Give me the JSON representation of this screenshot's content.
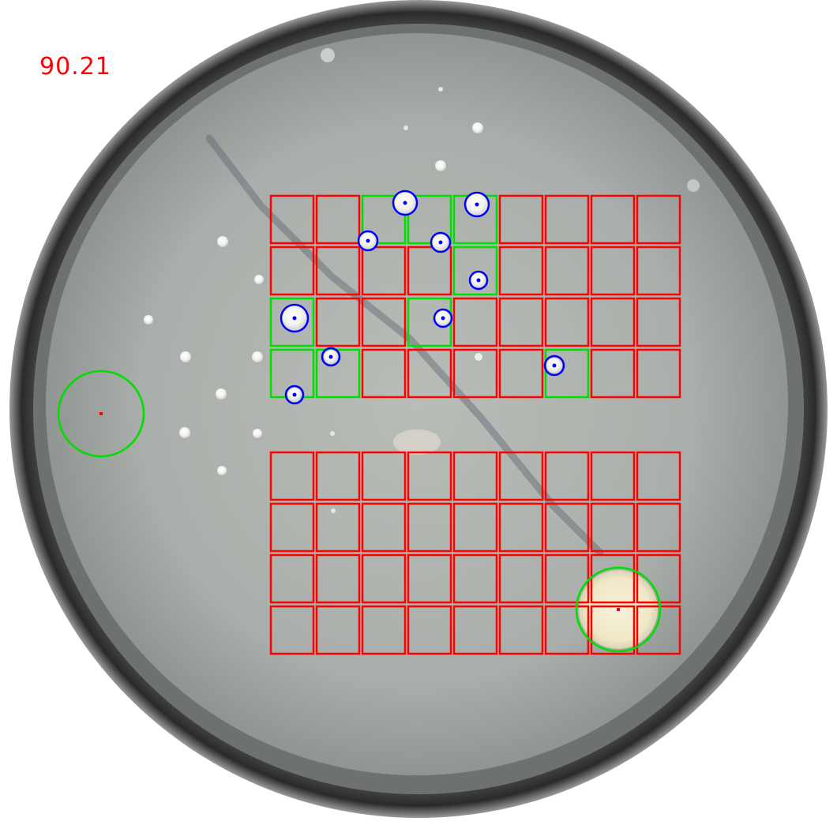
{
  "score": "90.21",
  "colors": {
    "empty_cell": "#ff0000",
    "colony_cell": "#00dd00",
    "colony_marker": "#0000ff",
    "reference_circle": "#00dd00",
    "reference_center": "#ff0000"
  },
  "grids": [
    {
      "name": "upper-grid",
      "rows": 4,
      "cols": 9,
      "cells": [
        [
          "empty",
          "empty",
          "colony",
          "colony",
          "colony",
          "empty",
          "empty",
          "empty",
          "empty"
        ],
        [
          "empty",
          "empty",
          "empty",
          "empty",
          "colony",
          "empty",
          "empty",
          "empty",
          "empty"
        ],
        [
          "colony",
          "empty",
          "empty",
          "colony",
          "empty",
          "empty",
          "empty",
          "empty",
          "empty"
        ],
        [
          "colony",
          "colony",
          "empty",
          "empty",
          "empty",
          "empty",
          "colony",
          "empty",
          "empty"
        ]
      ]
    },
    {
      "name": "lower-grid",
      "rows": 4,
      "cols": 9,
      "cells": [
        [
          "empty",
          "empty",
          "empty",
          "empty",
          "empty",
          "empty",
          "empty",
          "empty",
          "empty"
        ],
        [
          "empty",
          "empty",
          "empty",
          "empty",
          "empty",
          "empty",
          "empty",
          "empty",
          "empty"
        ],
        [
          "empty",
          "empty",
          "empty",
          "empty",
          "empty",
          "empty",
          "empty",
          "empty",
          "empty"
        ],
        [
          "empty",
          "empty",
          "empty",
          "empty",
          "empty",
          "empty",
          "empty",
          "empty",
          "empty"
        ]
      ]
    }
  ]
}
